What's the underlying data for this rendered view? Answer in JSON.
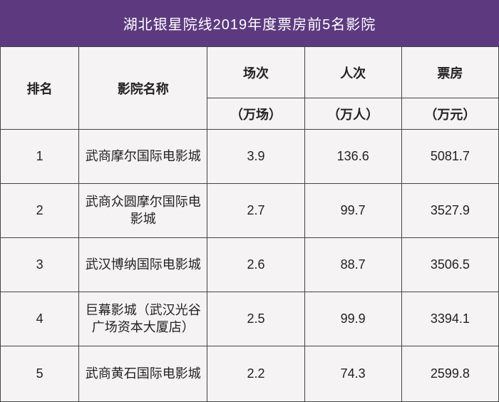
{
  "title": "湖北银星院线2019年度票房前5名影院",
  "columns": {
    "rank": "排名",
    "name": "影院名称",
    "sessions": "场次",
    "attendance": "人次",
    "boxoffice": "票房",
    "sessions_unit": "（万场）",
    "attendance_unit": "（万人）",
    "boxoffice_unit": "（万元）"
  },
  "rows": [
    {
      "rank": "1",
      "name": "武商摩尔国际电影城",
      "sessions": "3.9",
      "attendance": "136.6",
      "boxoffice": "5081.7"
    },
    {
      "rank": "2",
      "name": "武商众圆摩尔国际电影城",
      "sessions": "2.7",
      "attendance": "99.7",
      "boxoffice": "3527.9"
    },
    {
      "rank": "3",
      "name": "武汉博纳国际电影城",
      "sessions": "2.6",
      "attendance": "88.7",
      "boxoffice": "3506.5"
    },
    {
      "rank": "4",
      "name": "巨幕影城（武汉光谷广场资本大厦店）",
      "sessions": "2.5",
      "attendance": "99.9",
      "boxoffice": "3394.1"
    },
    {
      "rank": "5",
      "name": "武商黄石国际电影城",
      "sessions": "2.2",
      "attendance": "74.3",
      "boxoffice": "2599.8"
    }
  ],
  "style": {
    "title_bg": "#5d3a80",
    "title_color": "#ffffff",
    "border_color": "#444444",
    "body_bg": "#f5f3f4",
    "font_size_title": 20,
    "font_size_cell": 18
  }
}
